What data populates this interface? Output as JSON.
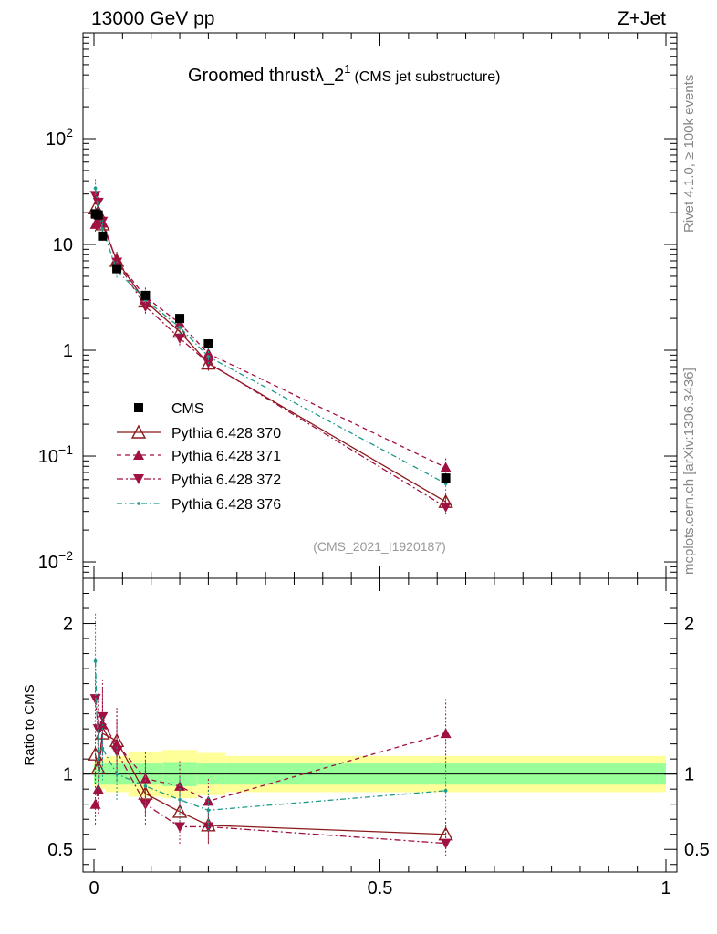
{
  "header": {
    "left": "13000 GeV pp",
    "right": "Z+Jet"
  },
  "side_labels": {
    "top": "Rivet 4.1.0, ≥ 100k events",
    "bottom": "mcplots.cern.ch [arXiv:1306.3436]"
  },
  "colors": {
    "cms": "#000000",
    "p370": "#8b1a1a",
    "p371": "#a01040",
    "p372": "#a01040",
    "p376": "#1a9a8a",
    "band_inner": "#99ff99",
    "band_outer": "#ffff99"
  },
  "chart_data": [
    {
      "type": "line",
      "title": "Groomed thrustλ_2",
      "title_sup": "1",
      "subtitle": "(CMS jet substructure)",
      "analysis_tag": "(CMS_2021_I1920187)",
      "xlabel": "",
      "ylabel": "",
      "yscale": "log",
      "xlim": [
        -0.02,
        1.02
      ],
      "ylim": [
        0.007,
        1000
      ],
      "y_ticks": [
        {
          "value": 0.01,
          "base": "10",
          "exp": "−2"
        },
        {
          "value": 0.1,
          "base": "10",
          "exp": "−1"
        },
        {
          "value": 1,
          "base": "1",
          "exp": ""
        },
        {
          "value": 10,
          "base": "10",
          "exp": ""
        },
        {
          "value": 100,
          "base": "10",
          "exp": "2"
        }
      ],
      "legend_position": "center-left",
      "series": [
        {
          "name": "CMS",
          "style": "square",
          "x": [
            0.0025,
            0.0075,
            0.015,
            0.04,
            0.09,
            0.15,
            0.2,
            0.615
          ],
          "y": [
            19.5,
            19.0,
            12.0,
            5.9,
            3.3,
            2.0,
            1.15,
            0.062
          ]
        },
        {
          "name": "Pythia 6.428 370",
          "style": "open-triangle-solid",
          "x": [
            0.0025,
            0.0075,
            0.015,
            0.04,
            0.09,
            0.15,
            0.2,
            0.615
          ],
          "y": [
            22.0,
            20.0,
            15.5,
            7.0,
            2.9,
            1.5,
            0.75,
            0.037
          ]
        },
        {
          "name": "Pythia 6.428 371",
          "style": "triangle-dashed",
          "x": [
            0.0025,
            0.0075,
            0.015,
            0.04,
            0.09,
            0.15,
            0.2,
            0.615
          ],
          "y": [
            15.5,
            17.0,
            16.0,
            7.0,
            3.2,
            1.8,
            0.93,
            0.078
          ]
        },
        {
          "name": "Pythia 6.428 372",
          "style": "down-triangle-dashdot",
          "x": [
            0.0025,
            0.0075,
            0.015,
            0.04,
            0.09,
            0.15,
            0.2,
            0.615
          ],
          "y": [
            29.0,
            25.0,
            16.5,
            6.8,
            2.6,
            1.3,
            0.76,
            0.033
          ]
        },
        {
          "name": "Pythia 6.428 376",
          "style": "dot-dashdot",
          "x": [
            0.0025,
            0.0075,
            0.015,
            0.04,
            0.09,
            0.15,
            0.2,
            0.615
          ],
          "y": [
            34.0,
            21.0,
            14.0,
            5.7,
            3.0,
            1.65,
            0.87,
            0.055
          ]
        }
      ]
    },
    {
      "type": "line",
      "title": "",
      "xlabel": "",
      "ylabel": "Ratio to CMS",
      "xlim": [
        -0.02,
        1.02
      ],
      "ylim": [
        0.35,
        2.3
      ],
      "x_ticks": [
        {
          "value": 0,
          "label": "0"
        },
        {
          "value": 0.5,
          "label": "0.5"
        },
        {
          "value": 1,
          "label": "1"
        }
      ],
      "y_ticks": [
        {
          "value": 0.5,
          "label": "0.5"
        },
        {
          "value": 1,
          "label": "1"
        },
        {
          "value": 2,
          "label": "2"
        }
      ],
      "reference_line": 1,
      "uncertainty_bands": {
        "edges": [
          0.0,
          0.005,
          0.01,
          0.02,
          0.06,
          0.12,
          0.18,
          0.23,
          1.0
        ],
        "inner": [
          0.06,
          0.06,
          0.07,
          0.07,
          0.07,
          0.08,
          0.07,
          0.07
        ],
        "outer": [
          0.08,
          0.08,
          0.1,
          0.12,
          0.15,
          0.16,
          0.14,
          0.12
        ]
      },
      "series": [
        {
          "name": "Pythia 6.428 370",
          "x": [
            0.0025,
            0.0075,
            0.015,
            0.04,
            0.09,
            0.15,
            0.2,
            0.615
          ],
          "y": [
            1.13,
            1.04,
            1.27,
            1.22,
            0.87,
            0.75,
            0.66,
            0.6
          ]
        },
        {
          "name": "Pythia 6.428 371",
          "x": [
            0.0025,
            0.0075,
            0.015,
            0.04,
            0.09,
            0.15,
            0.2,
            0.615
          ],
          "y": [
            0.8,
            0.9,
            1.33,
            1.2,
            0.97,
            0.92,
            0.82,
            1.27
          ]
        },
        {
          "name": "Pythia 6.428 372",
          "x": [
            0.0025,
            0.0075,
            0.015,
            0.04,
            0.09,
            0.15,
            0.2,
            0.615
          ],
          "y": [
            1.5,
            1.3,
            1.38,
            1.15,
            0.8,
            0.65,
            0.65,
            0.54
          ]
        },
        {
          "name": "Pythia 6.428 376",
          "x": [
            0.0025,
            0.0075,
            0.015,
            0.04,
            0.09,
            0.15,
            0.2,
            0.615
          ],
          "y": [
            1.75,
            1.1,
            1.17,
            1.0,
            0.92,
            0.83,
            0.76,
            0.89
          ]
        }
      ]
    }
  ]
}
